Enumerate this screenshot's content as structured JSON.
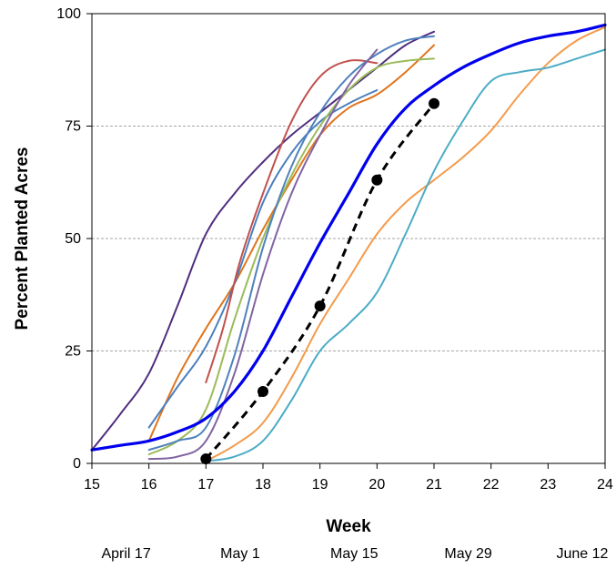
{
  "chart_data": {
    "type": "line",
    "title": "",
    "xlabel": "Week",
    "ylabel": "Percent Planted Acres",
    "xlim": [
      15,
      24
    ],
    "ylim": [
      0,
      100
    ],
    "x_ticks": [
      15,
      16,
      17,
      18,
      19,
      20,
      21,
      22,
      23,
      24
    ],
    "x_tick_labels": [
      "15",
      "16",
      "17",
      "18",
      "19",
      "20",
      "21",
      "22",
      "23",
      "24"
    ],
    "y_ticks": [
      0,
      25,
      50,
      75,
      100
    ],
    "y_tick_labels": [
      "0",
      "25",
      "50",
      "75",
      "100"
    ],
    "grid": {
      "horizontal": true,
      "vertical": false
    },
    "date_labels": [
      {
        "x": 15.6,
        "text": "April 17"
      },
      {
        "x": 17.6,
        "text": "May 1"
      },
      {
        "x": 19.6,
        "text": "May 15"
      },
      {
        "x": 21.6,
        "text": "May 29"
      },
      {
        "x": 23.6,
        "text": "June 12"
      }
    ],
    "series": [
      {
        "color": "#4f2d7f",
        "width": 2,
        "points": [
          [
            15,
            3
          ],
          [
            15.5,
            11
          ],
          [
            16,
            20
          ],
          [
            16.5,
            35
          ],
          [
            17,
            51
          ],
          [
            17.5,
            60
          ],
          [
            18,
            67
          ],
          [
            18.5,
            73
          ],
          [
            19,
            78
          ],
          [
            19.5,
            83
          ],
          [
            20,
            88
          ],
          [
            20.5,
            93
          ],
          [
            21,
            96
          ]
        ]
      },
      {
        "color": "#e0741c",
        "width": 2,
        "points": [
          [
            16,
            5
          ],
          [
            16.5,
            19
          ],
          [
            17,
            30
          ],
          [
            17.5,
            40
          ],
          [
            18,
            52
          ],
          [
            18.5,
            63
          ],
          [
            19,
            73
          ],
          [
            19.5,
            79
          ],
          [
            20,
            82
          ],
          [
            20.5,
            87
          ],
          [
            21,
            93
          ]
        ]
      },
      {
        "color": "#4a7fbd",
        "width": 2,
        "points": [
          [
            16,
            8
          ],
          [
            16.5,
            17
          ],
          [
            17,
            26
          ],
          [
            17.5,
            40
          ],
          [
            18,
            58
          ],
          [
            18.5,
            69
          ],
          [
            19,
            76
          ],
          [
            19.5,
            80
          ],
          [
            20,
            83
          ]
        ]
      },
      {
        "color": "#c0504d",
        "width": 2,
        "points": [
          [
            17,
            18
          ],
          [
            17.3,
            30
          ],
          [
            17.6,
            45
          ],
          [
            18,
            60
          ],
          [
            18.5,
            76
          ],
          [
            19,
            86
          ],
          [
            19.5,
            89.5
          ],
          [
            20,
            89
          ]
        ]
      },
      {
        "color": "#9bbb59",
        "width": 2,
        "points": [
          [
            16,
            2
          ],
          [
            16.5,
            5
          ],
          [
            17,
            12
          ],
          [
            17.5,
            32
          ],
          [
            18,
            50
          ],
          [
            18.5,
            64
          ],
          [
            19,
            75
          ],
          [
            19.5,
            83
          ],
          [
            20,
            88
          ],
          [
            20.5,
            89.5
          ],
          [
            21,
            90
          ]
        ]
      },
      {
        "color": "#4f81bd",
        "width": 2,
        "points": [
          [
            16,
            3
          ],
          [
            16.5,
            5
          ],
          [
            17,
            8
          ],
          [
            17.5,
            24
          ],
          [
            18,
            48
          ],
          [
            18.5,
            66
          ],
          [
            19,
            78
          ],
          [
            19.5,
            86
          ],
          [
            20,
            91
          ],
          [
            20.5,
            94
          ],
          [
            21,
            95
          ]
        ]
      },
      {
        "color": "#8064a2",
        "width": 2,
        "points": [
          [
            16,
            1
          ],
          [
            16.5,
            1.5
          ],
          [
            17,
            5
          ],
          [
            17.5,
            20
          ],
          [
            18,
            42
          ],
          [
            18.5,
            60
          ],
          [
            19,
            73
          ],
          [
            19.5,
            84
          ],
          [
            20,
            92
          ]
        ]
      },
      {
        "color": "#0000ee",
        "width": 3.2,
        "points": [
          [
            15,
            3
          ],
          [
            15.5,
            4
          ],
          [
            16,
            5
          ],
          [
            16.5,
            7
          ],
          [
            17,
            10
          ],
          [
            17.5,
            16
          ],
          [
            18,
            25
          ],
          [
            18.5,
            37
          ],
          [
            19,
            49
          ],
          [
            19.5,
            60
          ],
          [
            20,
            71
          ],
          [
            20.5,
            79
          ],
          [
            21,
            84
          ],
          [
            21.5,
            88
          ],
          [
            22,
            91
          ],
          [
            22.5,
            93.5
          ],
          [
            23,
            95
          ],
          [
            23.5,
            96
          ],
          [
            24,
            97.5
          ]
        ]
      },
      {
        "color": "#f39b4b",
        "width": 2,
        "points": [
          [
            17,
            0.5
          ],
          [
            17.5,
            4
          ],
          [
            18,
            9
          ],
          [
            18.5,
            19
          ],
          [
            19,
            31
          ],
          [
            19.5,
            41
          ],
          [
            20,
            51
          ],
          [
            20.5,
            58
          ],
          [
            21,
            63
          ],
          [
            21.5,
            68
          ],
          [
            22,
            74
          ],
          [
            22.5,
            82
          ],
          [
            23,
            89
          ],
          [
            23.5,
            94
          ],
          [
            24,
            97
          ]
        ]
      },
      {
        "color": "#4bacc6",
        "width": 2,
        "points": [
          [
            17,
            0.5
          ],
          [
            17.5,
            1.5
          ],
          [
            18,
            5
          ],
          [
            18.5,
            14
          ],
          [
            19,
            25
          ],
          [
            19.5,
            31
          ],
          [
            20,
            38
          ],
          [
            20.5,
            51
          ],
          [
            21,
            65
          ],
          [
            21.5,
            76
          ],
          [
            22,
            85
          ],
          [
            22.5,
            87
          ],
          [
            23,
            88
          ],
          [
            23.5,
            90
          ],
          [
            24,
            92
          ]
        ]
      },
      {
        "color": "#000000",
        "width": 3,
        "dashed": true,
        "markers": true,
        "points": [
          [
            17,
            1
          ],
          [
            18,
            16
          ],
          [
            19,
            35
          ],
          [
            20,
            63
          ],
          [
            21,
            80
          ]
        ]
      }
    ]
  }
}
